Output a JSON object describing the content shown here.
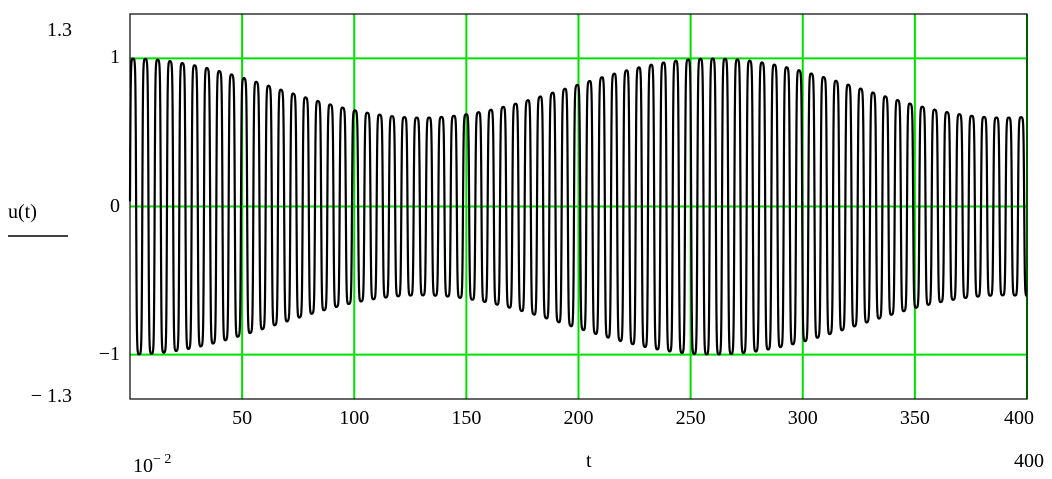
{
  "chart_data": {
    "type": "line",
    "ylabel": "u(t)",
    "xlabel": "t",
    "xlim": [
      0.01,
      400
    ],
    "ylim": [
      -1.3,
      1.3
    ],
    "x_range_labels": {
      "min_base": "10",
      "min_exp": "− 2",
      "max": "400"
    },
    "y_range_labels": {
      "top": "1.3",
      "bottom": "− 1.3"
    },
    "x_ticks": [
      {
        "value": 50,
        "label": "50"
      },
      {
        "value": 100,
        "label": "100"
      },
      {
        "value": 150,
        "label": "150"
      },
      {
        "value": 200,
        "label": "200"
      },
      {
        "value": 250,
        "label": "250"
      },
      {
        "value": 300,
        "label": "300"
      },
      {
        "value": 350,
        "label": "350"
      },
      {
        "value": 400,
        "label": "400"
      }
    ],
    "y_ticks": [
      {
        "value": 1,
        "label": "1"
      },
      {
        "value": 0,
        "label": "0"
      },
      {
        "value": -1,
        "label": "−1"
      }
    ],
    "grid": true,
    "grid_color": "#00e000",
    "line_color": "#000000",
    "series": [
      {
        "function": "amplitude-modulated oscillation",
        "oscillation_period": 5.5,
        "envelope_max": 1.0,
        "envelope_min": 0.6,
        "envelope_max_at": [
          0,
          255
        ],
        "envelope_min_at": [
          130,
          380
        ],
        "values_sampled": [
          [
            0,
            1.0
          ],
          [
            25,
            0.95
          ],
          [
            50,
            0.86
          ],
          [
            75,
            0.74
          ],
          [
            100,
            0.64
          ],
          [
            130,
            0.6
          ],
          [
            150,
            0.62
          ],
          [
            175,
            0.7
          ],
          [
            200,
            0.82
          ],
          [
            225,
            0.93
          ],
          [
            255,
            1.0
          ],
          [
            275,
            0.97
          ],
          [
            300,
            0.86
          ],
          [
            325,
            0.74
          ],
          [
            350,
            0.64
          ],
          [
            380,
            0.6
          ],
          [
            400,
            0.61
          ]
        ]
      }
    ]
  }
}
